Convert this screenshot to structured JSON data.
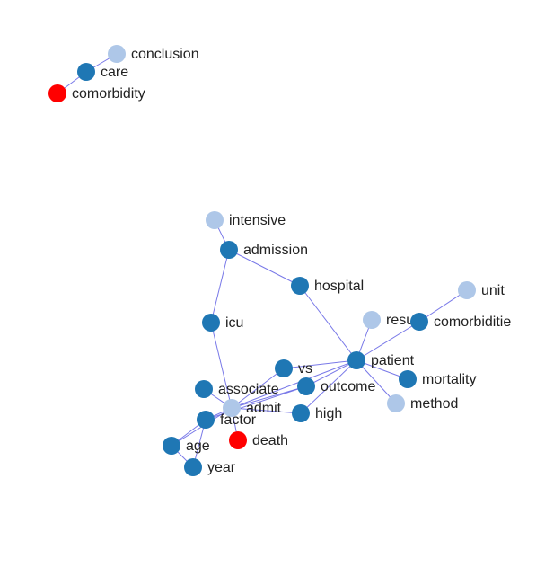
{
  "graph": {
    "colors": {
      "primary": "#1f77b4",
      "light": "#aec7e8",
      "alert": "#ff0000",
      "edge": "#6a6ae6"
    },
    "nodes": [
      {
        "id": "conclusion",
        "label": "conclusion",
        "group": "light"
      },
      {
        "id": "care",
        "label": "care",
        "group": "primary"
      },
      {
        "id": "comorbidity",
        "label": "comorbidity",
        "group": "alert"
      },
      {
        "id": "intensive",
        "label": "intensive",
        "group": "light"
      },
      {
        "id": "admission",
        "label": "admission",
        "group": "primary"
      },
      {
        "id": "hospital",
        "label": "hospital",
        "group": "primary"
      },
      {
        "id": "unit",
        "label": "unit",
        "group": "light"
      },
      {
        "id": "result",
        "label": "result",
        "group": "light"
      },
      {
        "id": "comorbiditie",
        "label": "comorbiditie",
        "group": "primary"
      },
      {
        "id": "icu",
        "label": "icu",
        "group": "primary"
      },
      {
        "id": "patient",
        "label": "patient",
        "group": "primary"
      },
      {
        "id": "vs",
        "label": "vs",
        "group": "primary"
      },
      {
        "id": "mortality",
        "label": "mortality",
        "group": "primary"
      },
      {
        "id": "associate",
        "label": "associate",
        "group": "primary"
      },
      {
        "id": "outcome",
        "label": "outcome",
        "group": "primary"
      },
      {
        "id": "method",
        "label": "method",
        "group": "light"
      },
      {
        "id": "admit",
        "label": "admit",
        "group": "light"
      },
      {
        "id": "high",
        "label": "high",
        "group": "primary"
      },
      {
        "id": "factor",
        "label": "factor",
        "group": "primary"
      },
      {
        "id": "death",
        "label": "death",
        "group": "alert"
      },
      {
        "id": "age",
        "label": "age",
        "group": "primary"
      },
      {
        "id": "year",
        "label": "year",
        "group": "primary"
      }
    ],
    "edges": [
      [
        "conclusion",
        "care"
      ],
      [
        "care",
        "comorbidity"
      ],
      [
        "intensive",
        "admission"
      ],
      [
        "admission",
        "hospital"
      ],
      [
        "admission",
        "icu"
      ],
      [
        "hospital",
        "patient"
      ],
      [
        "icu",
        "admit"
      ],
      [
        "unit",
        "comorbiditie"
      ],
      [
        "comorbiditie",
        "patient"
      ],
      [
        "result",
        "patient"
      ],
      [
        "patient",
        "vs"
      ],
      [
        "patient",
        "mortality"
      ],
      [
        "patient",
        "method"
      ],
      [
        "patient",
        "outcome"
      ],
      [
        "patient",
        "high"
      ],
      [
        "patient",
        "admit"
      ],
      [
        "vs",
        "admit"
      ],
      [
        "associate",
        "admit"
      ],
      [
        "outcome",
        "admit"
      ],
      [
        "outcome",
        "factor"
      ],
      [
        "admit",
        "high"
      ],
      [
        "admit",
        "factor"
      ],
      [
        "admit",
        "death"
      ],
      [
        "admit",
        "age"
      ],
      [
        "factor",
        "age"
      ],
      [
        "age",
        "year"
      ],
      [
        "factor",
        "year"
      ]
    ]
  }
}
